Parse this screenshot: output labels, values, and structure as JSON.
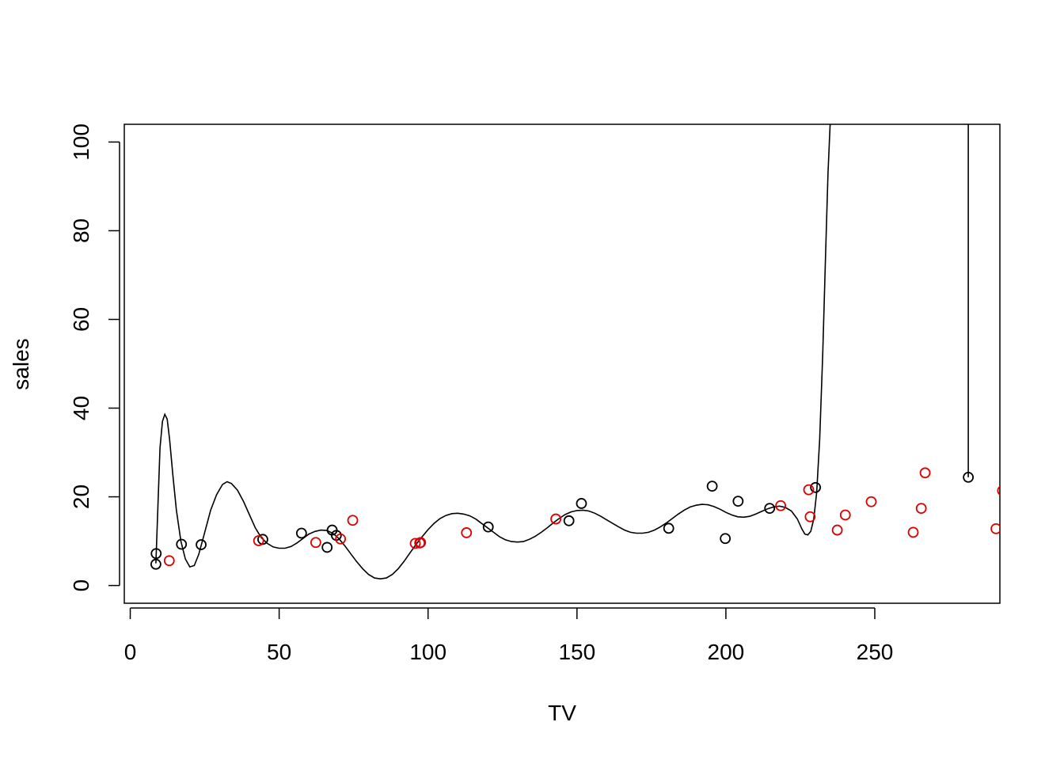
{
  "chart_data": {
    "type": "scatter",
    "xlabel": "TV",
    "ylabel": "sales",
    "xlim": [
      -2,
      292
    ],
    "ylim": [
      -4,
      104
    ],
    "xticks": [
      0,
      50,
      100,
      150,
      200,
      250
    ],
    "yticks": [
      0,
      20,
      40,
      60,
      80,
      100
    ],
    "grid": false,
    "series": [
      {
        "color": "#000000",
        "marker": "open-circle",
        "points": [
          [
            8.7,
            7.2
          ],
          [
            8.6,
            4.8
          ],
          [
            17.2,
            9.3
          ],
          [
            23.8,
            9.2
          ],
          [
            44.5,
            10.4
          ],
          [
            57.5,
            11.8
          ],
          [
            66.1,
            8.6
          ],
          [
            67.8,
            12.5
          ],
          [
            69.2,
            11.3
          ],
          [
            120.2,
            13.2
          ],
          [
            147.3,
            14.6
          ],
          [
            151.5,
            18.5
          ],
          [
            180.8,
            12.9
          ],
          [
            195.4,
            22.4
          ],
          [
            199.8,
            10.6
          ],
          [
            204.1,
            19.0
          ],
          [
            214.7,
            17.4
          ],
          [
            230.1,
            22.1
          ],
          [
            281.4,
            24.4
          ]
        ]
      },
      {
        "color": "#dd0000",
        "marker": "open-circle",
        "points": [
          [
            13.1,
            5.6
          ],
          [
            43.1,
            10.1
          ],
          [
            62.3,
            9.7
          ],
          [
            70.6,
            10.5
          ],
          [
            74.7,
            14.7
          ],
          [
            95.7,
            9.5
          ],
          [
            97.2,
            9.6
          ],
          [
            97.5,
            9.7
          ],
          [
            112.9,
            11.9
          ],
          [
            142.9,
            15.0
          ],
          [
            218.4,
            18.0
          ],
          [
            228.3,
            15.5
          ],
          [
            227.8,
            21.6
          ],
          [
            237.4,
            12.5
          ],
          [
            240.1,
            15.9
          ],
          [
            248.8,
            18.9
          ],
          [
            262.9,
            12.0
          ],
          [
            265.6,
            17.4
          ],
          [
            266.9,
            25.4
          ],
          [
            290.7,
            12.8
          ],
          [
            292.9,
            21.4
          ]
        ]
      },
      {
        "color": "#000000",
        "marker": "line",
        "points": [
          [
            8.6,
            5
          ],
          [
            9.3,
            18
          ],
          [
            10.0,
            31
          ],
          [
            10.8,
            37
          ],
          [
            11.6,
            38.6
          ],
          [
            12.4,
            37.5
          ],
          [
            13.2,
            33
          ],
          [
            14.3,
            25
          ],
          [
            15.5,
            17
          ],
          [
            17.0,
            10
          ],
          [
            18.5,
            6
          ],
          [
            20.0,
            4.2
          ],
          [
            21.5,
            4.5
          ],
          [
            23.0,
            7
          ],
          [
            25.0,
            12
          ],
          [
            27.0,
            17
          ],
          [
            29.0,
            20.5
          ],
          [
            31.0,
            22.8
          ],
          [
            32.5,
            23.4
          ],
          [
            34.0,
            23
          ],
          [
            36.0,
            21.5
          ],
          [
            38.0,
            19
          ],
          [
            40.0,
            16
          ],
          [
            42.0,
            13
          ],
          [
            44.0,
            10.8
          ],
          [
            46.0,
            9.5
          ],
          [
            48.0,
            8.7
          ],
          [
            50.0,
            8.4
          ],
          [
            52.0,
            8.4
          ],
          [
            54.0,
            8.8
          ],
          [
            56.0,
            9.6
          ],
          [
            58.0,
            10.6
          ],
          [
            60.0,
            11.6
          ],
          [
            62.0,
            12.2
          ],
          [
            64.0,
            12.5
          ],
          [
            66.0,
            12.4
          ],
          [
            68.0,
            11.8
          ],
          [
            70.0,
            10.6
          ],
          [
            72.0,
            9.0
          ],
          [
            74.0,
            7.2
          ],
          [
            76.0,
            5.4
          ],
          [
            78.0,
            3.8
          ],
          [
            80.0,
            2.5
          ],
          [
            82.0,
            1.7
          ],
          [
            84.0,
            1.5
          ],
          [
            86.0,
            1.7
          ],
          [
            88.0,
            2.5
          ],
          [
            90.0,
            3.8
          ],
          [
            92.0,
            5.5
          ],
          [
            94.0,
            7.4
          ],
          [
            96.0,
            9.3
          ],
          [
            98.0,
            11.0
          ],
          [
            100.0,
            12.6
          ],
          [
            102.0,
            14.0
          ],
          [
            104.0,
            15.1
          ],
          [
            106.0,
            15.8
          ],
          [
            108.0,
            16.2
          ],
          [
            110.0,
            16.3
          ],
          [
            112.0,
            16.1
          ],
          [
            114.0,
            15.7
          ],
          [
            116.0,
            15.0
          ],
          [
            118.0,
            14.0
          ],
          [
            120.0,
            13.0
          ],
          [
            122.0,
            12.0
          ],
          [
            124.0,
            11.0
          ],
          [
            126.0,
            10.3
          ],
          [
            128.0,
            9.9
          ],
          [
            130.0,
            9.8
          ],
          [
            132.0,
            9.9
          ],
          [
            134.0,
            10.4
          ],
          [
            136.0,
            11.1
          ],
          [
            138.0,
            12.0
          ],
          [
            140.0,
            13.0
          ],
          [
            142.0,
            14.1
          ],
          [
            144.0,
            15.1
          ],
          [
            146.0,
            16.0
          ],
          [
            148.0,
            16.6
          ],
          [
            150.0,
            16.9
          ],
          [
            152.0,
            17.0
          ],
          [
            154.0,
            16.8
          ],
          [
            156.0,
            16.3
          ],
          [
            158.0,
            15.6
          ],
          [
            160.0,
            14.8
          ],
          [
            162.0,
            14.0
          ],
          [
            164.0,
            13.2
          ],
          [
            166.0,
            12.5
          ],
          [
            168.0,
            12.0
          ],
          [
            170.0,
            11.8
          ],
          [
            172.0,
            11.8
          ],
          [
            174.0,
            12.0
          ],
          [
            176.0,
            12.5
          ],
          [
            178.0,
            13.2
          ],
          [
            180.0,
            14.1
          ],
          [
            182.0,
            15.1
          ],
          [
            184.0,
            16.1
          ],
          [
            186.0,
            17.0
          ],
          [
            188.0,
            17.7
          ],
          [
            190.0,
            18.1
          ],
          [
            192.0,
            18.3
          ],
          [
            194.0,
            18.2
          ],
          [
            196.0,
            17.8
          ],
          [
            198.0,
            17.2
          ],
          [
            200.0,
            16.5
          ],
          [
            202.0,
            15.9
          ],
          [
            204.0,
            15.5
          ],
          [
            206.0,
            15.4
          ],
          [
            208.0,
            15.6
          ],
          [
            210.0,
            16.1
          ],
          [
            212.0,
            16.7
          ],
          [
            214.0,
            17.3
          ],
          [
            216.0,
            17.7
          ],
          [
            218.0,
            17.9
          ],
          [
            220.0,
            17.6
          ],
          [
            222.0,
            16.8
          ],
          [
            224.0,
            15.0
          ],
          [
            225.5,
            12.8
          ],
          [
            226.5,
            11.6
          ],
          [
            227.5,
            11.4
          ],
          [
            228.5,
            12.2
          ],
          [
            229.5,
            15.0
          ],
          [
            230.5,
            21.0
          ],
          [
            231.5,
            33.0
          ],
          [
            232.5,
            52.0
          ],
          [
            233.5,
            75.0
          ],
          [
            234.3,
            93.0
          ],
          [
            235.0,
            104.0
          ]
        ]
      },
      {
        "color": "#000000",
        "marker": "line",
        "points": [
          [
            281.4,
            104.0
          ],
          [
            281.4,
            24.4
          ]
        ]
      }
    ]
  }
}
